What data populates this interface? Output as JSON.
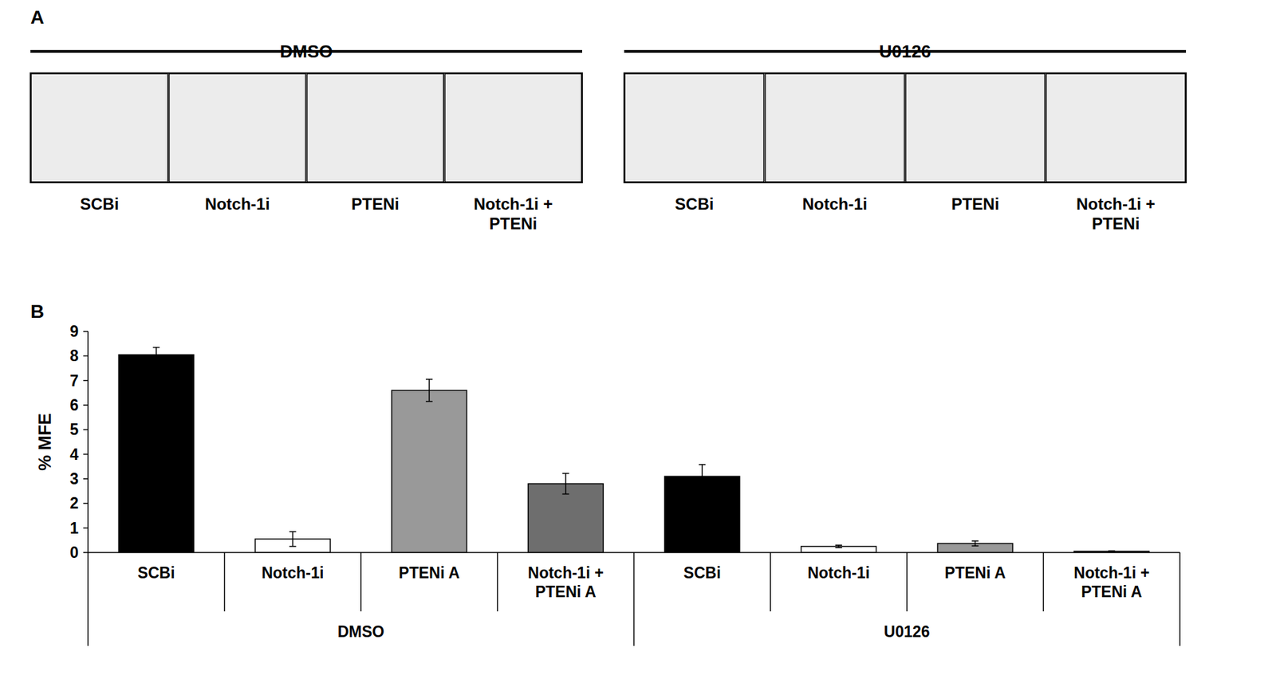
{
  "panel_a": {
    "label": "A",
    "groups": [
      {
        "name": "DMSO",
        "images": [
          "SCBi",
          "Notch-1i",
          "PTENi",
          "Notch-1i + PTENi"
        ]
      },
      {
        "name": "U0126",
        "images": [
          "SCBi",
          "Notch-1i",
          "PTENi",
          "Notch-1i + PTENi"
        ]
      }
    ]
  },
  "chart_data": {
    "type": "bar",
    "panel_label": "B",
    "y_label": "% MFE",
    "categories": [
      "SCBi",
      "Notch-1i",
      "PTENi A",
      "Notch-1i + PTENi A",
      "SCBi",
      "Notch-1i",
      "PTENi A",
      "Notch-1i + PTENi A"
    ],
    "category_groups": [
      "DMSO",
      "DMSO",
      "DMSO",
      "DMSO",
      "U0126",
      "U0126",
      "U0126",
      "U0126"
    ],
    "values": [
      8.05,
      0.55,
      6.6,
      2.8,
      3.1,
      0.25,
      0.37,
      0.05
    ],
    "errors": [
      0.3,
      0.3,
      0.45,
      0.42,
      0.48,
      0.05,
      0.1,
      0.02
    ],
    "colors": [
      "#000000",
      "#ffffff",
      "#999999",
      "#6e6e6e",
      "#000000",
      "#ffffff",
      "#999999",
      "#6e6e6e"
    ],
    "ylim": [
      0,
      9
    ],
    "yticks": [
      0,
      1,
      2,
      3,
      4,
      5,
      6,
      7,
      8,
      9
    ],
    "grid": false
  }
}
